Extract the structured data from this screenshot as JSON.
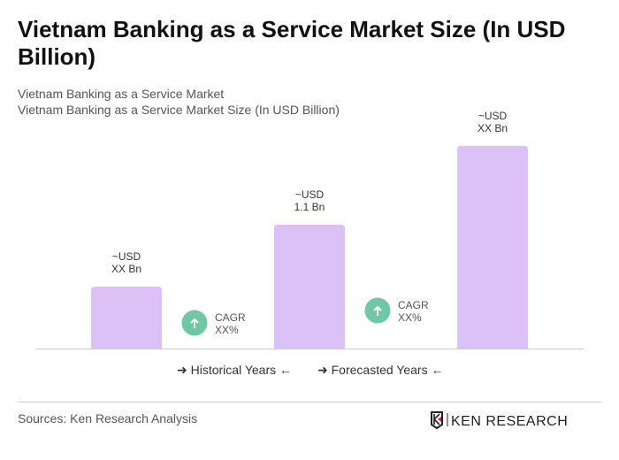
{
  "title": "Vietnam Banking as a Service Market Size (In USD Billion)",
  "subtitle1": "Vietnam Banking as a Service Market",
  "subtitle2": "Vietnam Banking as a Service Market Size (In USD Billion)",
  "legend": {
    "historical": "Historical Years",
    "forecast": "Forecasted Years"
  },
  "sources": "Sources: Ken Research Analysis",
  "logo_text": "KEN RESEARCH",
  "chart_data": {
    "type": "bar",
    "categories": [
      "",
      "",
      ""
    ],
    "values": [
      0.55,
      1.1,
      1.8
    ],
    "labels": [
      [
        "~USD",
        "XX Bn"
      ],
      [
        "~USD",
        "1.1 Bn"
      ],
      [
        "~USD",
        "XX Bn"
      ]
    ],
    "cagr": [
      [
        "CAGR",
        "XX%"
      ],
      [
        "CAGR",
        "XX%"
      ]
    ],
    "bar_color": "#dcc1f6",
    "cagr_color": "#6fc7a3",
    "grid": false
  }
}
